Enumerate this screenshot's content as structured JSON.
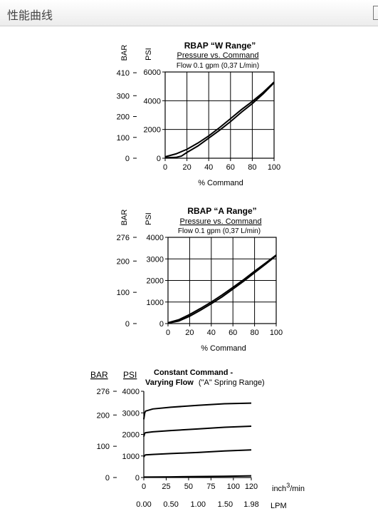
{
  "header": {
    "title": "性能曲线"
  },
  "chart_data": [
    {
      "type": "line",
      "title": "RBAP “W Range”",
      "subtitle": "Pressure vs. Command",
      "note": "Flow 0.1 gpm (0,37 L/min)",
      "xlabel": "% Command",
      "ylabel": "PSI",
      "ylabel2": "BAR",
      "xlim": [
        0,
        100
      ],
      "ylim": [
        0,
        6000
      ],
      "xticks": [
        "0",
        "20",
        "40",
        "60",
        "80",
        "100"
      ],
      "yticks": [
        "0",
        "2000",
        "4000",
        "6000"
      ],
      "y2ticks": [
        {
          "label": "0",
          "psi": 0
        },
        {
          "label": "100",
          "psi": 1450
        },
        {
          "label": "200",
          "psi": 2900
        },
        {
          "label": "300",
          "psi": 4350
        },
        {
          "label": "410",
          "psi": 5947
        }
      ],
      "series": [
        {
          "x": [
            0,
            10,
            20,
            30,
            40,
            50,
            60,
            70,
            80,
            90,
            100
          ],
          "values": [
            100,
            300,
            620,
            1050,
            1550,
            2130,
            2750,
            3380,
            3950,
            4580,
            5300
          ]
        },
        {
          "x": [
            0,
            10,
            15,
            20,
            30,
            40,
            50,
            60,
            70,
            80,
            90,
            100
          ],
          "values": [
            30,
            60,
            150,
            400,
            850,
            1400,
            1950,
            2550,
            3200,
            3800,
            4480,
            5250
          ]
        }
      ]
    },
    {
      "type": "line",
      "title": "RBAP “A Range”",
      "subtitle": "Pressure vs. Command",
      "note": "Flow 0.1 gpm (0,37 L/min)",
      "xlabel": "% Command",
      "ylabel": "PSI",
      "ylabel2": "BAR",
      "xlim": [
        0,
        100
      ],
      "ylim": [
        0,
        4000
      ],
      "xticks": [
        "0",
        "20",
        "40",
        "60",
        "80",
        "100"
      ],
      "yticks": [
        "0",
        "1000",
        "2000",
        "3000",
        "4000"
      ],
      "y2ticks": [
        {
          "label": "0",
          "psi": 0
        },
        {
          "label": "100",
          "psi": 1450
        },
        {
          "label": "200",
          "psi": 2900
        },
        {
          "label": "276",
          "psi": 4000
        }
      ],
      "series": [
        {
          "x": [
            0,
            10,
            20,
            30,
            40,
            50,
            60,
            70,
            80,
            90,
            100
          ],
          "values": [
            40,
            180,
            420,
            700,
            1000,
            1330,
            1680,
            2040,
            2430,
            2800,
            3180
          ]
        },
        {
          "x": [
            0,
            10,
            20,
            30,
            40,
            50,
            60,
            70,
            80,
            90,
            100
          ],
          "values": [
            20,
            120,
            340,
            620,
            920,
            1240,
            1600,
            1970,
            2360,
            2750,
            3150
          ]
        }
      ]
    },
    {
      "type": "line",
      "title": "Constant Command -",
      "title2": "Varying Flow",
      "subtitle": "(\"A\" Spring Range)",
      "ylabel": "PSI",
      "ylabel2": "BAR",
      "xunit": "inch3/min",
      "xunit_sup": "3",
      "xunit_pre": "inch",
      "xunit_post": "/min",
      "x2unit": "LPM",
      "xlim": [
        0,
        120
      ],
      "ylim": [
        0,
        4000
      ],
      "xticks": [
        "0",
        "25",
        "50",
        "75",
        "100",
        "120"
      ],
      "x2ticks": [
        "0.00",
        "0.50",
        "1.00",
        "1.50",
        "1.98"
      ],
      "yticks": [
        "0",
        "1000",
        "2000",
        "3000",
        "4000"
      ],
      "y2ticks": [
        {
          "label": "0",
          "psi": 0
        },
        {
          "label": "100",
          "psi": 1450
        },
        {
          "label": "200",
          "psi": 2900
        },
        {
          "label": "276",
          "psi": 4000
        }
      ],
      "series": [
        {
          "x": [
            0,
            1,
            2,
            10,
            30,
            60,
            90,
            120
          ],
          "values": [
            2700,
            3000,
            3080,
            3180,
            3260,
            3350,
            3420,
            3450
          ]
        },
        {
          "x": [
            0,
            1,
            2,
            10,
            30,
            60,
            90,
            120
          ],
          "values": [
            1900,
            2050,
            2080,
            2120,
            2180,
            2250,
            2330,
            2380
          ]
        },
        {
          "x": [
            0,
            1,
            2,
            10,
            30,
            60,
            90,
            120
          ],
          "values": [
            950,
            1020,
            1050,
            1070,
            1110,
            1160,
            1230,
            1280
          ]
        },
        {
          "x": [
            0,
            30,
            60,
            90,
            120
          ],
          "values": [
            20,
            30,
            45,
            60,
            80
          ]
        }
      ]
    }
  ]
}
